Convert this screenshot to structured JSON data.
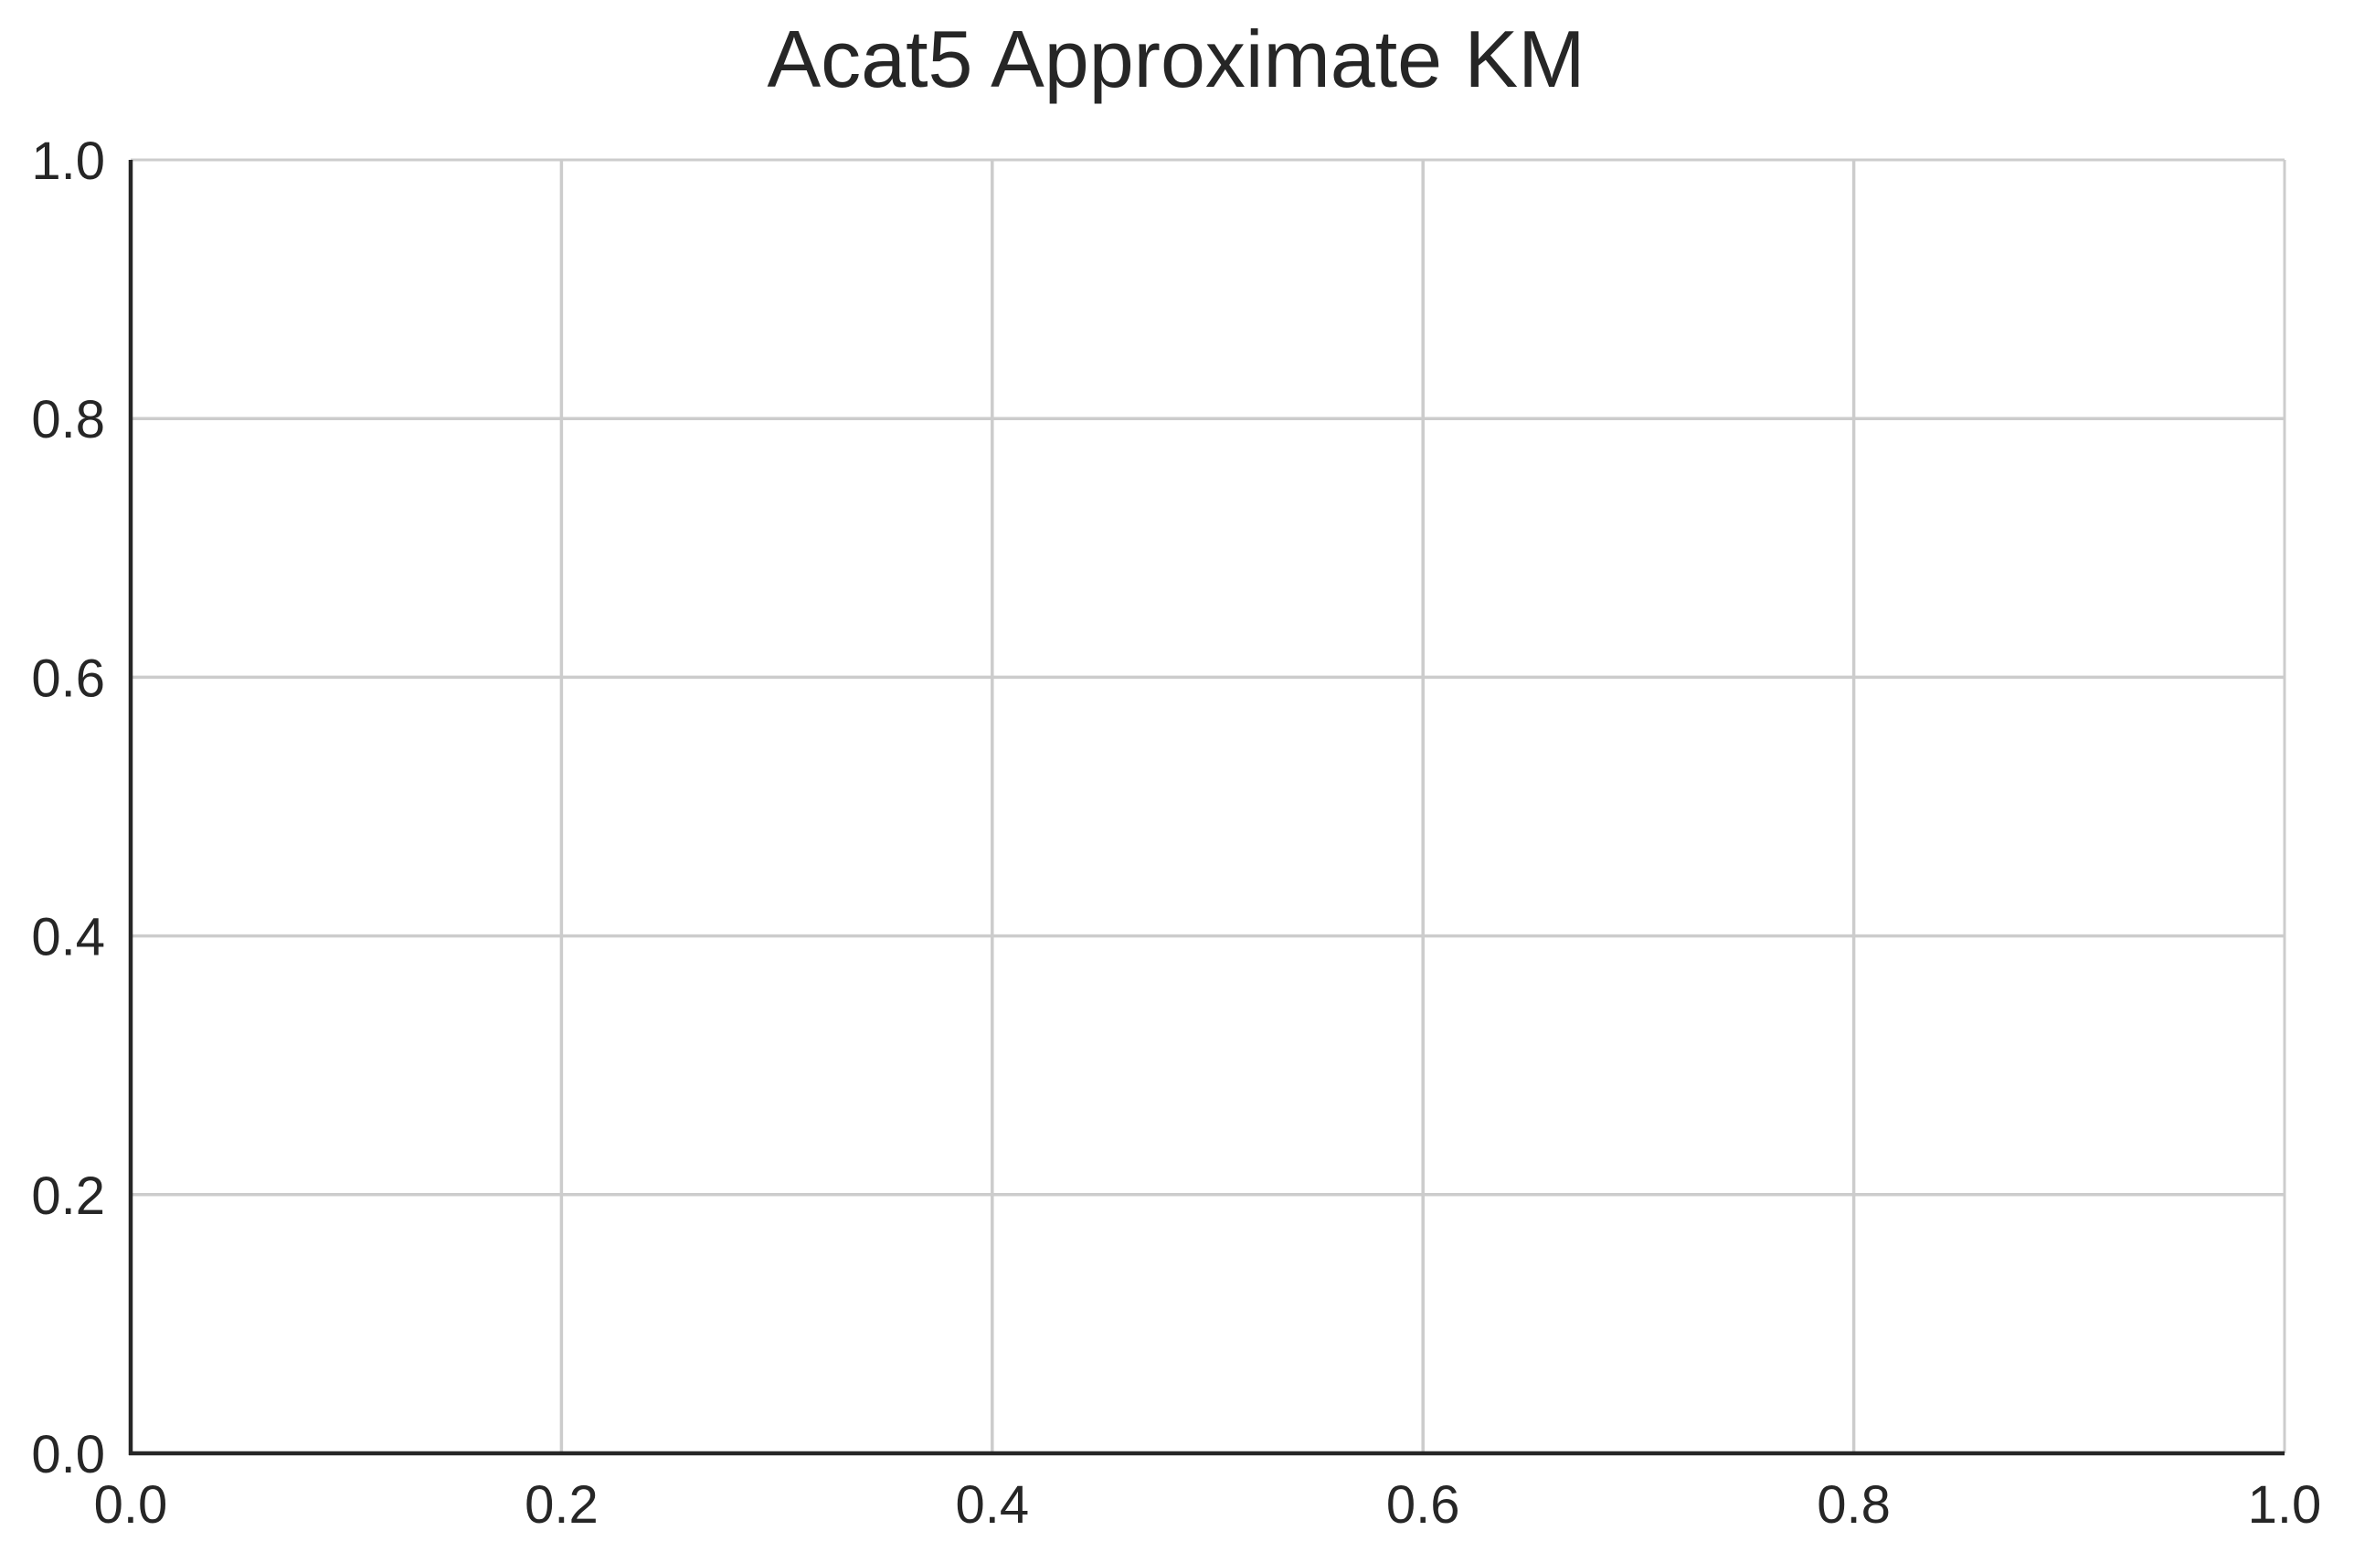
{
  "chart_data": {
    "type": "line",
    "title": "Acat5 Approximate KM",
    "xlabel": "",
    "ylabel": "",
    "xlim": [
      0.0,
      1.0
    ],
    "ylim": [
      0.0,
      1.0
    ],
    "x_ticks": [
      {
        "value": 0.0,
        "label": "0.0"
      },
      {
        "value": 0.2,
        "label": "0.2"
      },
      {
        "value": 0.4,
        "label": "0.4"
      },
      {
        "value": 0.6,
        "label": "0.6"
      },
      {
        "value": 0.8,
        "label": "0.8"
      },
      {
        "value": 1.0,
        "label": "1.0"
      }
    ],
    "y_ticks": [
      {
        "value": 0.0,
        "label": "0.0"
      },
      {
        "value": 0.2,
        "label": "0.2"
      },
      {
        "value": 0.4,
        "label": "0.4"
      },
      {
        "value": 0.6,
        "label": "0.6"
      },
      {
        "value": 0.8,
        "label": "0.8"
      },
      {
        "value": 1.0,
        "label": "1.0"
      }
    ],
    "series": [],
    "grid": true,
    "legend": "none",
    "colors": {
      "grid": "#cccccc",
      "axis": "#262626",
      "text": "#262626",
      "background": "#ffffff"
    }
  }
}
